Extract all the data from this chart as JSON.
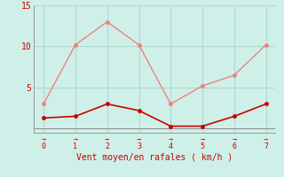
{
  "x": [
    0,
    1,
    2,
    3,
    4,
    5,
    6,
    7
  ],
  "y_rafales": [
    3,
    10.2,
    13,
    10.2,
    3,
    5.2,
    6.5,
    10.2
  ],
  "y_moyen": [
    1.3,
    1.5,
    3,
    2.2,
    0.3,
    0.3,
    1.5,
    3
  ],
  "color_rafales": "#f08080",
  "color_moyen": "#cc0000",
  "background_color": "#cff0e8",
  "grid_color": "#b0d8d0",
  "xlabel": "Vent moyen/en rafales ( km/h )",
  "xlabel_color": "#cc0000",
  "tick_color": "#cc0000",
  "ylim": [
    -0.5,
    15
  ],
  "xlim": [
    -0.3,
    7.3
  ],
  "yticks": [
    5,
    10,
    15
  ],
  "xticks": [
    0,
    1,
    2,
    3,
    4,
    5,
    6,
    7
  ],
  "figsize": [
    3.2,
    2.0
  ],
  "dpi": 100
}
